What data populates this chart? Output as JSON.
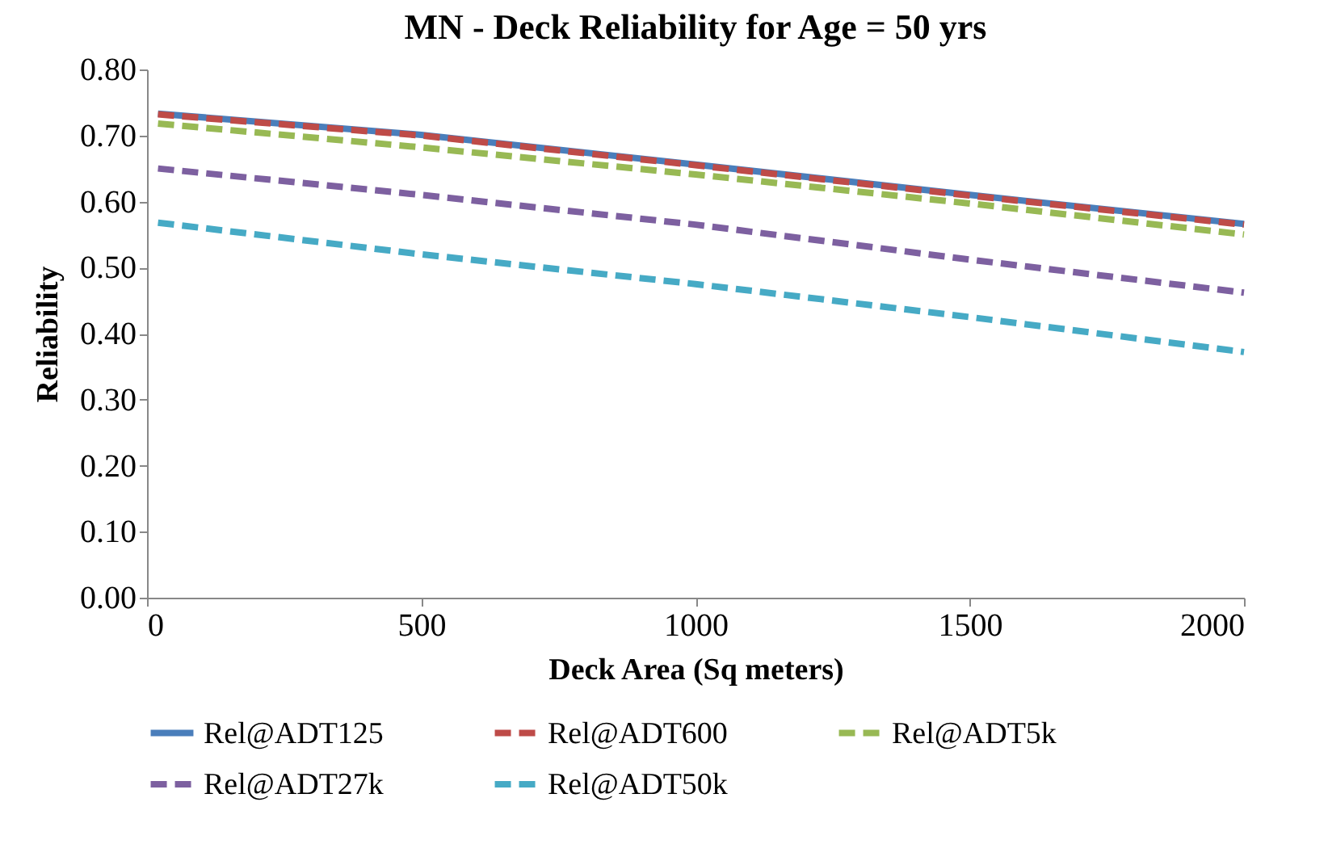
{
  "chart_data": {
    "type": "line",
    "title": "MN - Deck Reliability for Age = 50 yrs",
    "xlabel": "Deck Area (Sq meters)",
    "ylabel": "Reliability",
    "x": [
      20,
      500,
      1000,
      1500,
      2000
    ],
    "series": [
      {
        "name": "Rel@ADT125",
        "color": "#4a7ebb",
        "line_style": "solid",
        "values": [
          0.733,
          0.701,
          0.656,
          0.61,
          0.566
        ]
      },
      {
        "name": "Rel@ADT600",
        "color": "#be4b48",
        "line_style": "dashed",
        "values": [
          0.732,
          0.7,
          0.655,
          0.609,
          0.565
        ]
      },
      {
        "name": "Rel@ADT5k",
        "color": "#98b954",
        "line_style": "dashed",
        "values": [
          0.718,
          0.682,
          0.641,
          0.597,
          0.55
        ]
      },
      {
        "name": "Rel@ADT27k",
        "color": "#7d60a0",
        "line_style": "dashed",
        "values": [
          0.65,
          0.61,
          0.565,
          0.512,
          0.462
        ]
      },
      {
        "name": "Rel@ADT50k",
        "color": "#46aac5",
        "line_style": "dashed",
        "values": [
          0.568,
          0.52,
          0.475,
          0.425,
          0.372
        ]
      }
    ],
    "xlim": [
      0,
      2000
    ],
    "xticks": [
      0,
      500,
      1000,
      1500,
      2000
    ],
    "ylim": [
      0,
      0.8
    ],
    "yticks": [
      {
        "value": 0,
        "label": "0.00"
      },
      {
        "value": 0.1,
        "label": "0.10"
      },
      {
        "value": 0.2,
        "label": "0.20"
      },
      {
        "value": 0.3,
        "label": "0.30"
      },
      {
        "value": 0.4,
        "label": "0.40"
      },
      {
        "value": 0.5,
        "label": "0.50"
      },
      {
        "value": 0.6,
        "label": "0.60"
      },
      {
        "value": 0.7,
        "label": "0.70"
      },
      {
        "value": 0.8,
        "label": "0.80"
      }
    ],
    "legend": "bottom"
  }
}
